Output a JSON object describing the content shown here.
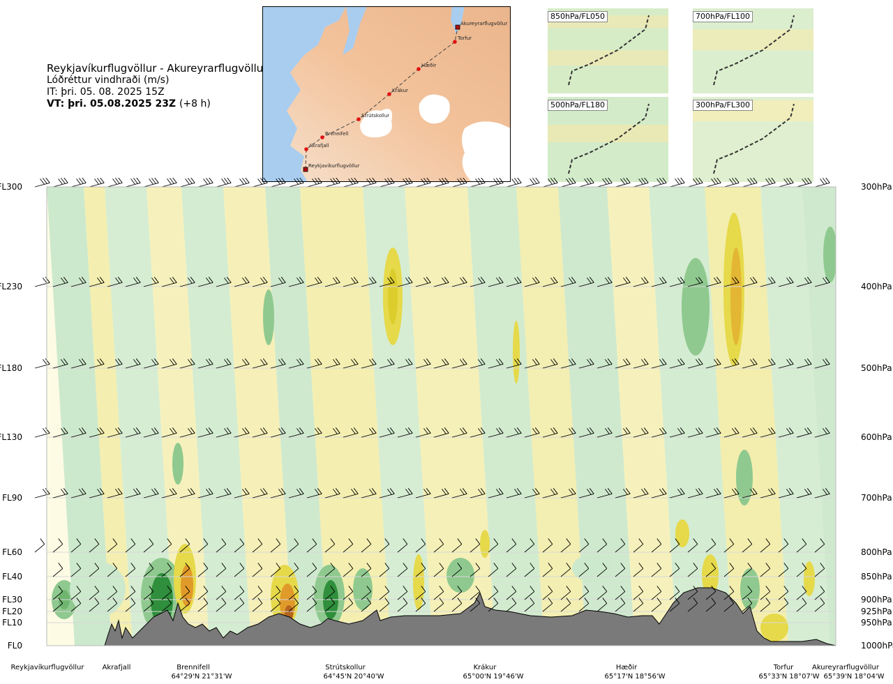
{
  "header": {
    "route_title": "Reykjavíkurflugvöllur - Akureyrarflugvöllur",
    "parameter": "Lóðréttur vindhraði (m/s)",
    "issue_time": "IT: þri. 05. 08. 2025 15Z",
    "valid_time": "VT: þri. 05.08.2025 23Z",
    "lead_time": "(+8 h)"
  },
  "map": {
    "points": [
      {
        "name": "Akureyrarflugvöllur"
      },
      {
        "name": "Torfur"
      },
      {
        "name": "Hæðir"
      },
      {
        "name": "Krákur"
      },
      {
        "name": "Strútskollur"
      },
      {
        "name": "Brennifell"
      },
      {
        "name": "Akrafjall"
      },
      {
        "name": "Reykjavíkurflugvöllur"
      }
    ]
  },
  "thumbnails": [
    {
      "label": "850hPa/FL050"
    },
    {
      "label": "700hPa/FL100"
    },
    {
      "label": "500hPa/FL180"
    },
    {
      "label": "300hPa/FL300"
    }
  ],
  "colors": {
    "updraft_weak": "#f4efb0",
    "updraft_mid": "#e6d94a",
    "updraft_strong": "#e09a2a",
    "updraft_max": "#b5651d",
    "downdraft_weak": "#cde9cd",
    "downdraft_mid": "#8fc98f",
    "downdraft_strong": "#2f8f3c",
    "terrain": "#7a7a7a"
  },
  "chart_data": {
    "type": "heatmap",
    "title": "",
    "xlabel": "",
    "ylabel": "",
    "flight_levels": [
      {
        "label": "FL300",
        "hpa": "300hPa"
      },
      {
        "label": "FL230",
        "hpa": "400hPa"
      },
      {
        "label": "FL180",
        "hpa": "500hPa"
      },
      {
        "label": "FL130",
        "hpa": "600hPa"
      },
      {
        "label": "FL90",
        "hpa": "700hPa"
      },
      {
        "label": "FL60",
        "hpa": "800hPa"
      },
      {
        "label": "FL40",
        "hpa": "850hPa"
      },
      {
        "label": "FL30",
        "hpa": "900hPa"
      },
      {
        "label": "FL20",
        "hpa": "925hPa"
      },
      {
        "label": "FL10",
        "hpa": "950hPa"
      },
      {
        "label": "FL0",
        "hpa": "1000hPa"
      }
    ],
    "stations": [
      {
        "name": "Reykjavíkurflugvöllur",
        "coords": ""
      },
      {
        "name": "Akrafjall",
        "coords": ""
      },
      {
        "name": "Brennifell",
        "coords": "64°29'N 21°31'W"
      },
      {
        "name": "Strútskollur",
        "coords": "64°45'N 20°40'W"
      },
      {
        "name": "Krákur",
        "coords": "65°00'N 19°46'W"
      },
      {
        "name": "Hæðir",
        "coords": "65°17'N 18°56'W"
      },
      {
        "name": "Torfur",
        "coords": "65°33'N 18°07'W"
      },
      {
        "name": "Akureyrarflugvöllur",
        "coords": "65°39'N 18°04'W"
      }
    ]
  }
}
